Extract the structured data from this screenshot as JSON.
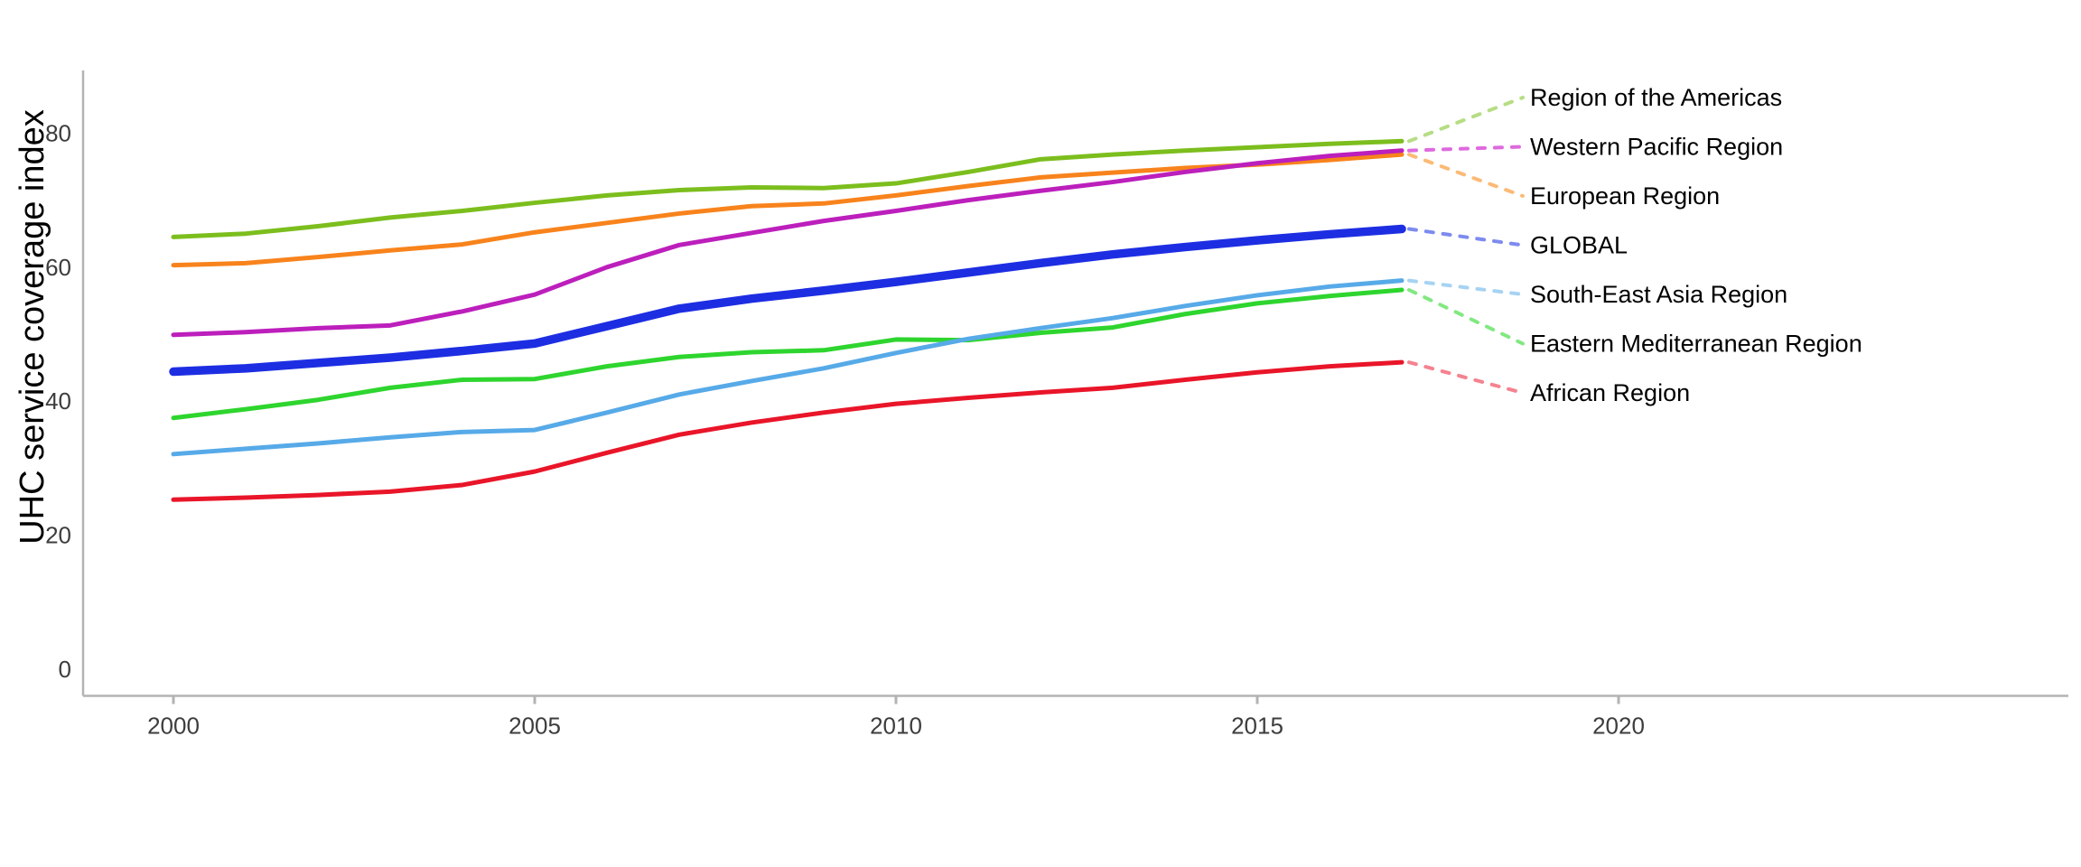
{
  "page": {
    "background": "#ffffff"
  },
  "axes": {
    "line_color": "#b3b3b3",
    "tick_color": "#b3b3b3",
    "tick_label_color": "#3d3d3d",
    "label_color": "#000000"
  },
  "chart_data": {
    "type": "line",
    "title": "",
    "xlabel": "",
    "ylabel": "UHC service coverage index",
    "grid": false,
    "legend_position": "right-edge labels with dashed leader lines",
    "x": [
      2000,
      2001,
      2002,
      2003,
      2004,
      2005,
      2006,
      2007,
      2008,
      2009,
      2010,
      2011,
      2012,
      2013,
      2014,
      2015,
      2016,
      2017
    ],
    "xticks": [
      "2000",
      "2005",
      "2010",
      "2015",
      "2020"
    ],
    "xtick_years": [
      2000,
      2005,
      2010,
      2015,
      2020
    ],
    "yticks": [
      "0",
      "20",
      "40",
      "60",
      "80"
    ],
    "ytick_values": [
      0,
      20,
      40,
      60,
      80
    ],
    "xlim": [
      1998.75,
      2026.2
    ],
    "ylim": [
      0,
      84
    ],
    "series": [
      {
        "name": "Region of the Americas",
        "color": "#7cbe1d",
        "leader_color": "#b6dd84",
        "line_width": 5,
        "values": [
          64.5,
          65.0,
          66.1,
          67.4,
          68.4,
          69.6,
          70.7,
          71.5,
          71.9,
          71.8,
          72.5,
          74.2,
          76.1,
          76.8,
          77.4,
          77.9,
          78.4,
          78.8
        ]
      },
      {
        "name": "Western Pacific Region",
        "color": "#bc1fbc",
        "leader_color": "#de6ade",
        "line_width": 5,
        "values": [
          49.9,
          50.3,
          50.9,
          51.3,
          53.4,
          55.9,
          60.0,
          63.3,
          65.1,
          66.9,
          68.4,
          70.0,
          71.4,
          72.7,
          74.2,
          75.5,
          76.6,
          77.4
        ]
      },
      {
        "name": "European Region",
        "color": "#f8831c",
        "leader_color": "#fcba76",
        "line_width": 5,
        "values": [
          60.3,
          60.6,
          61.5,
          62.5,
          63.4,
          65.2,
          66.6,
          68.0,
          69.1,
          69.5,
          70.7,
          72.1,
          73.4,
          74.1,
          74.8,
          75.3,
          76.0,
          76.8
        ]
      },
      {
        "name": "GLOBAL",
        "color": "#1d2ee2",
        "leader_color": "#7d8bef",
        "line_width": 9.5,
        "values": [
          44.4,
          44.9,
          45.7,
          46.5,
          47.5,
          48.6,
          51.2,
          53.8,
          55.3,
          56.5,
          57.8,
          59.2,
          60.6,
          61.9,
          63.0,
          64.0,
          64.9,
          65.7
        ]
      },
      {
        "name": "South-East Asia Region",
        "color": "#57aae8",
        "leader_color": "#a6d3f3",
        "line_width": 5,
        "values": [
          32.1,
          32.9,
          33.7,
          34.6,
          35.4,
          35.7,
          38.3,
          41.0,
          43.0,
          44.9,
          47.2,
          49.3,
          50.9,
          52.4,
          54.2,
          55.8,
          57.1,
          58.0
        ]
      },
      {
        "name": "Eastern Mediterranean Region",
        "color": "#2ed52e",
        "leader_color": "#82e882",
        "line_width": 5,
        "values": [
          37.5,
          38.8,
          40.2,
          42.0,
          43.2,
          43.3,
          45.2,
          46.6,
          47.3,
          47.6,
          49.2,
          49.1,
          50.2,
          51.0,
          53.0,
          54.6,
          55.7,
          56.6
        ]
      },
      {
        "name": "African Region",
        "color": "#e91529",
        "leader_color": "#f4838f",
        "line_width": 5,
        "values": [
          25.3,
          25.6,
          26.0,
          26.5,
          27.5,
          29.5,
          32.3,
          35.0,
          36.8,
          38.3,
          39.6,
          40.5,
          41.3,
          42.0,
          43.2,
          44.3,
          45.2,
          45.8
        ]
      }
    ]
  }
}
